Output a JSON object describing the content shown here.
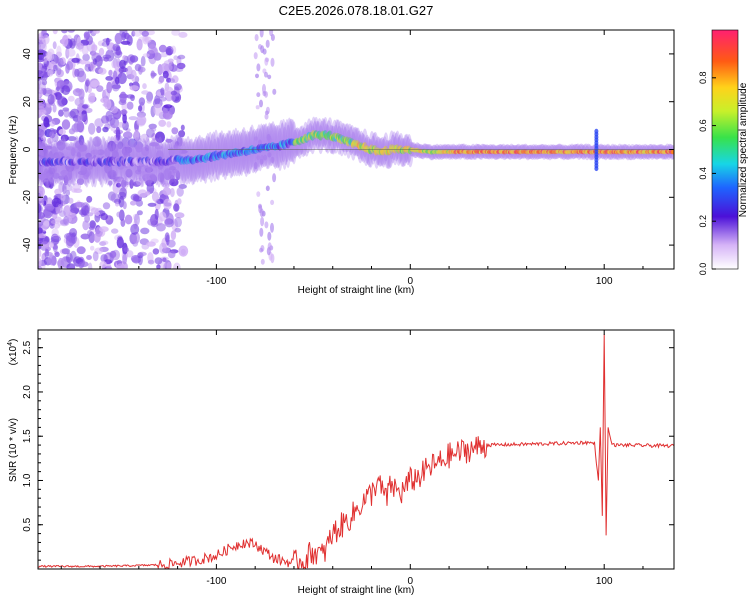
{
  "title": "C2E5.2026.078.18.01.G27",
  "chart_data": [
    {
      "type": "heatmap",
      "title": "C2E5.2026.078.18.01.G27",
      "xlabel": "Height of straight line (km)",
      "ylabel": "Frequency (Hz)",
      "xlim": [
        -192,
        136
      ],
      "ylim": [
        -50,
        50
      ],
      "xticks": [
        -100,
        0,
        100
      ],
      "yticks": [
        -40,
        -20,
        0,
        20,
        40
      ],
      "ridge": {
        "x": [
          -130,
          -110,
          -95,
          -80,
          -70,
          -60,
          -50,
          -42,
          -35,
          -28,
          -20,
          -15,
          -10,
          -5,
          0,
          10,
          20,
          40,
          60,
          80,
          95,
          110,
          136
        ],
        "y": [
          -5,
          -4,
          -2,
          0,
          1,
          3,
          6,
          6,
          4,
          2,
          0,
          -1,
          0,
          0,
          0,
          -1,
          -1,
          -1,
          -1,
          -1,
          -1,
          -1,
          -1
        ]
      },
      "colorbar": {
        "label": "Normalized spectral amplitude",
        "range": [
          0,
          1
        ],
        "ticks": [
          "0.0",
          "0.2",
          "0.4",
          "0.6",
          "0.8"
        ]
      }
    },
    {
      "type": "line",
      "xlabel": "Height of straight line (km)",
      "ylabel": "SNR (10 * v/v)",
      "yscale_label": "(x10",
      "yscale_exp": "4",
      "xlim": [
        -192,
        136
      ],
      "ylim": [
        0,
        2.7
      ],
      "xticks": [
        -100,
        0,
        100
      ],
      "yticks": [
        "0.5",
        "1.0",
        "1.5",
        "2.0",
        "2.5"
      ],
      "series": [
        {
          "name": "SNR",
          "color": "#e03030",
          "x": [
            -192,
            -160,
            -140,
            -125,
            -110,
            -100,
            -92,
            -86,
            -80,
            -75,
            -70,
            -60,
            -55,
            -50,
            -45,
            -40,
            -35,
            -30,
            -25,
            -20,
            -17,
            -15,
            -12,
            -10,
            -5,
            0,
            5,
            10,
            15,
            20,
            30,
            40,
            60,
            80,
            90,
            95,
            97,
            98,
            99,
            100,
            101,
            102,
            104,
            110,
            136
          ],
          "y": [
            0.03,
            0.03,
            0.04,
            0.05,
            0.1,
            0.15,
            0.25,
            0.3,
            0.28,
            0.2,
            0.12,
            0.06,
            0.1,
            0.2,
            0.15,
            0.4,
            0.5,
            0.6,
            0.75,
            0.85,
            1.0,
            0.9,
            0.8,
            0.95,
            0.85,
            1.0,
            1.05,
            1.15,
            1.2,
            1.28,
            1.35,
            1.4,
            1.41,
            1.42,
            1.43,
            1.42,
            1.0,
            1.6,
            0.6,
            2.65,
            0.38,
            1.6,
            1.4,
            1.4,
            1.39
          ]
        }
      ]
    }
  ]
}
